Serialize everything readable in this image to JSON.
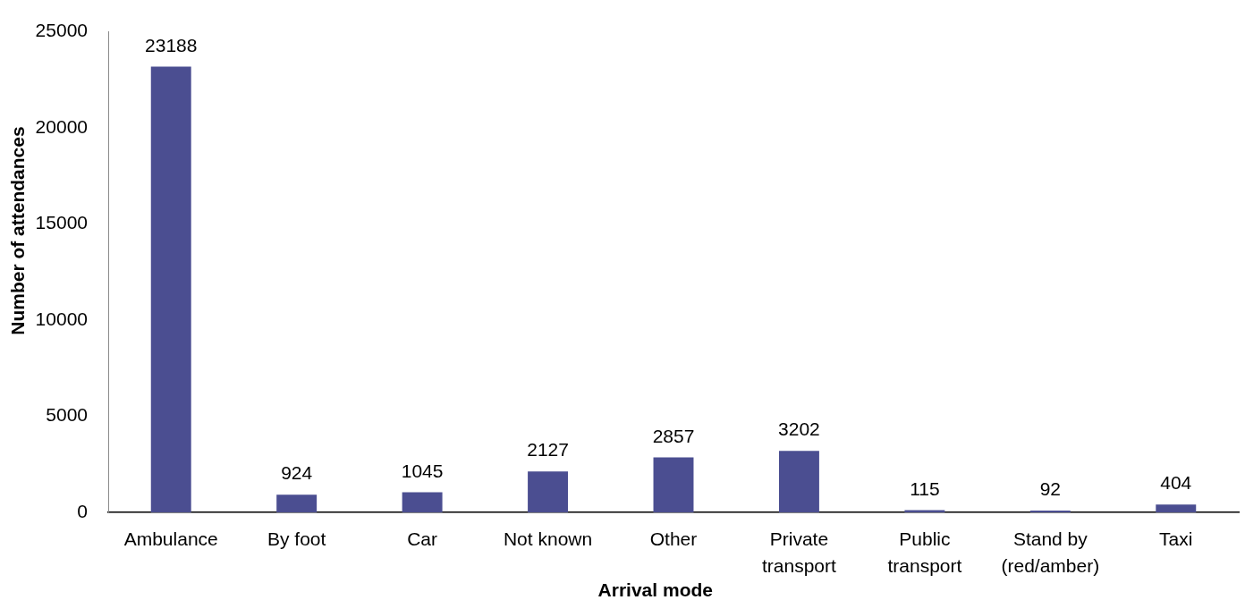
{
  "chart_data": {
    "type": "bar",
    "xlabel": "Arrival mode",
    "ylabel": "Number of attendances",
    "categories": [
      "Ambulance",
      "By foot",
      "Car",
      "Not known",
      "Other",
      "Private transport",
      "Public transport",
      "Stand by (red/amber)",
      "Taxi"
    ],
    "values": [
      23188,
      924,
      1045,
      2127,
      2857,
      3202,
      115,
      92,
      404
    ],
    "color": "#4b4e91",
    "ylim": [
      0,
      25000
    ],
    "yticks": [
      0,
      5000,
      10000,
      15000,
      20000,
      25000
    ],
    "data_labels": true
  }
}
